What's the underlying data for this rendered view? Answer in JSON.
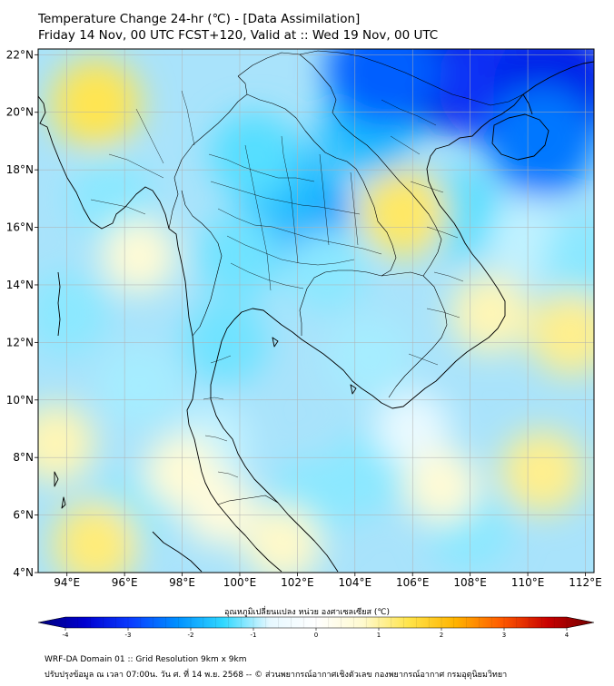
{
  "title": {
    "line1": "Temperature Change 24-hr (℃) - [Data Assimilation]",
    "line2": "Friday 14 Nov, 00 UTC FCST+120, Valid at :: Wed 19 Nov, 00 UTC"
  },
  "map": {
    "lon_range": [
      93,
      112.3
    ],
    "lat_range": [
      4,
      22.2
    ],
    "lon_ticks": [
      "94°E",
      "96°E",
      "98°E",
      "100°E",
      "102°E",
      "104°E",
      "106°E",
      "108°E",
      "110°E",
      "112°E"
    ],
    "lon_tick_values": [
      94,
      96,
      98,
      100,
      102,
      104,
      106,
      108,
      110,
      112
    ],
    "lat_ticks": [
      "4°N",
      "6°N",
      "8°N",
      "10°N",
      "12°N",
      "14°N",
      "16°N",
      "18°N",
      "20°N",
      "22°N"
    ],
    "lat_tick_values": [
      4,
      6,
      8,
      10,
      12,
      14,
      16,
      18,
      20,
      22
    ],
    "field_blobs": [
      {
        "lon": 104.5,
        "lat": 19.5,
        "value": -1.6
      },
      {
        "lon": 107.0,
        "lat": 21.6,
        "value": -3.2
      },
      {
        "lon": 109.0,
        "lat": 21.0,
        "value": -2.8
      },
      {
        "lon": 111.0,
        "lat": 20.8,
        "value": -3.0
      },
      {
        "lon": 110.5,
        "lat": 19.0,
        "value": -2.2
      },
      {
        "lon": 105.0,
        "lat": 21.5,
        "value": -2.4
      },
      {
        "lon": 102.0,
        "lat": 16.5,
        "value": -2.0
      },
      {
        "lon": 101.5,
        "lat": 17.5,
        "value": -1.6
      },
      {
        "lon": 100.0,
        "lat": 15.0,
        "value": -1.1
      },
      {
        "lon": 103.0,
        "lat": 14.5,
        "value": -1.0
      },
      {
        "lon": 100.5,
        "lat": 18.5,
        "value": -1.2
      },
      {
        "lon": 99.5,
        "lat": 12.0,
        "value": -1.1
      },
      {
        "lon": 95.5,
        "lat": 17.0,
        "value": -1.0
      },
      {
        "lon": 94.0,
        "lat": 13.0,
        "value": -1.0
      },
      {
        "lon": 96.5,
        "lat": 10.5,
        "value": -0.9
      },
      {
        "lon": 104.5,
        "lat": 11.5,
        "value": -0.9
      },
      {
        "lon": 107.5,
        "lat": 16.5,
        "value": -1.2
      },
      {
        "lon": 110.0,
        "lat": 15.5,
        "value": -0.8
      },
      {
        "lon": 112.0,
        "lat": 15.0,
        "value": -1.0
      },
      {
        "lon": 99.0,
        "lat": 8.5,
        "value": -0.8
      },
      {
        "lon": 102.5,
        "lat": 6.5,
        "value": -1.0
      },
      {
        "lon": 104.5,
        "lat": 7.5,
        "value": -1.0
      },
      {
        "lon": 108.0,
        "lat": 5.5,
        "value": -1.0
      },
      {
        "lon": 96.0,
        "lat": 6.0,
        "value": -1.0
      },
      {
        "lon": 106.0,
        "lat": 9.0,
        "value": -0.6
      },
      {
        "lon": 95.0,
        "lat": 20.3,
        "value": 1.3
      },
      {
        "lon": 105.7,
        "lat": 16.5,
        "value": 1.2
      },
      {
        "lon": 108.7,
        "lat": 13.0,
        "value": 0.8
      },
      {
        "lon": 111.5,
        "lat": 12.3,
        "value": 1.0
      },
      {
        "lon": 95.0,
        "lat": 5.0,
        "value": 1.1
      },
      {
        "lon": 93.6,
        "lat": 8.5,
        "value": 0.8
      },
      {
        "lon": 110.5,
        "lat": 7.5,
        "value": 1.0
      },
      {
        "lon": 107.0,
        "lat": 7.0,
        "value": 0.6
      },
      {
        "lon": 101.5,
        "lat": 5.0,
        "value": 0.7
      },
      {
        "lon": 98.0,
        "lat": 7.5,
        "value": 0.6
      },
      {
        "lon": 96.5,
        "lat": 15.0,
        "value": 0.6
      },
      {
        "lon": 99.3,
        "lat": 6.2,
        "value": 0.5
      }
    ]
  },
  "colorbar": {
    "title": "อุณหภูมิเปลี่ยนแปลง หน่วย องศาเซลเซียส (℃)",
    "ticks": [
      "-4",
      "-3",
      "-2",
      "-1",
      "0",
      "1",
      "2",
      "3",
      "4"
    ],
    "tick_values": [
      -4,
      -3,
      -2,
      -1,
      0,
      1,
      2,
      3,
      4
    ],
    "colors": [
      "#00007a",
      "#0000d0",
      "#0a3cff",
      "#0090ff",
      "#30d8ff",
      "#e6f8ff",
      "#ffffff",
      "#fffad0",
      "#ffe44a",
      "#ffb400",
      "#ff5a00",
      "#c80000",
      "#6e0000"
    ]
  },
  "footer": {
    "line1": "WRF-DA Domain 01 :: Grid Resolution 9km x 9km",
    "line2": "ปรับปรุงข้อมูล ณ เวลา 07:00น. วัน ศ. ที่ 14 พ.ย. 2568 -- © ส่วนพยากรณ์อากาศเชิงตัวเลข กองพยากรณ์อากาศ กรมอุตุนิยมวิทยา"
  }
}
